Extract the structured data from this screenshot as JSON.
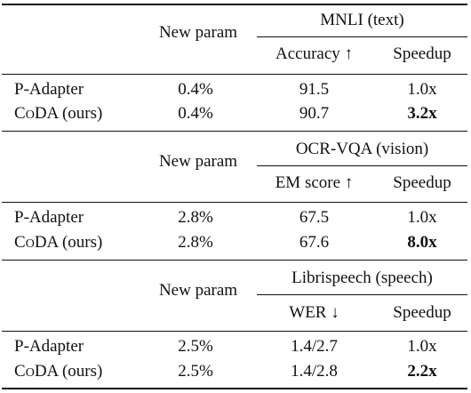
{
  "sections": [
    {
      "param_header": "New param",
      "task": "MNLI (text)",
      "metric": "Accuracy ↑",
      "speedup_header": "Speedup",
      "rows": [
        {
          "method": "P-Adapter",
          "param": "0.4%",
          "score": "91.5",
          "speedup": "1.0x",
          "bold": false
        },
        {
          "method_prefix": "C",
          "method_sc": "O",
          "method_suffix": "DA (ours)",
          "param": "0.4%",
          "score": "90.7",
          "speedup": "3.2x",
          "bold": true
        }
      ]
    },
    {
      "param_header": "New param",
      "task": "OCR-VQA (vision)",
      "metric": "EM score ↑",
      "speedup_header": "Speedup",
      "rows": [
        {
          "method": "P-Adapter",
          "param": "2.8%",
          "score": "67.5",
          "speedup": "1.0x",
          "bold": false
        },
        {
          "method_prefix": "C",
          "method_sc": "O",
          "method_suffix": "DA (ours)",
          "param": "2.8%",
          "score": "67.6",
          "speedup": "8.0x",
          "bold": true
        }
      ]
    },
    {
      "param_header": "New param",
      "task": "Librispeech (speech)",
      "metric": "WER ↓",
      "speedup_header": "Speedup",
      "rows": [
        {
          "method": "P-Adapter",
          "param": "2.5%",
          "score": "1.4/2.7",
          "speedup": "1.0x",
          "bold": false
        },
        {
          "method_prefix": "C",
          "method_sc": "O",
          "method_suffix": "DA (ours)",
          "param": "2.5%",
          "score": "1.4/2.8",
          "speedup": "2.2x",
          "bold": true
        }
      ]
    }
  ]
}
